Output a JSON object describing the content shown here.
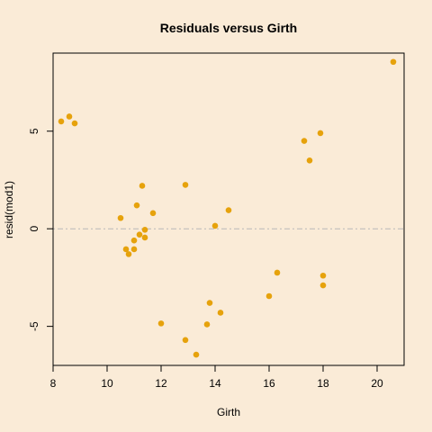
{
  "chart_data": {
    "type": "scatter",
    "title": "Residuals versus Girth",
    "xlabel": "Girth",
    "ylabel": "resid(mod1)",
    "xlim": [
      8,
      21
    ],
    "ylim": [
      -7,
      9
    ],
    "xticks": [
      8,
      10,
      12,
      14,
      16,
      18,
      20
    ],
    "yticks": [
      -5,
      0,
      5
    ],
    "reference_line_y": 0,
    "grid": false,
    "point_color": "#e6a20c",
    "background_color": "#faebd7",
    "points": [
      {
        "x": 8.3,
        "y": 5.5
      },
      {
        "x": 8.6,
        "y": 5.75
      },
      {
        "x": 8.8,
        "y": 5.4
      },
      {
        "x": 10.5,
        "y": 0.55
      },
      {
        "x": 10.7,
        "y": -1.05
      },
      {
        "x": 10.8,
        "y": -1.3
      },
      {
        "x": 11.0,
        "y": -0.6
      },
      {
        "x": 11.0,
        "y": -1.05
      },
      {
        "x": 11.1,
        "y": 1.2
      },
      {
        "x": 11.2,
        "y": -0.3
      },
      {
        "x": 11.3,
        "y": 2.2
      },
      {
        "x": 11.4,
        "y": -0.45
      },
      {
        "x": 11.4,
        "y": -0.05
      },
      {
        "x": 11.7,
        "y": 0.8
      },
      {
        "x": 12.0,
        "y": -4.85
      },
      {
        "x": 12.9,
        "y": -5.7
      },
      {
        "x": 12.9,
        "y": 2.25
      },
      {
        "x": 13.3,
        "y": -6.45
      },
      {
        "x": 13.7,
        "y": -4.9
      },
      {
        "x": 13.8,
        "y": -3.8
      },
      {
        "x": 14.0,
        "y": 0.15
      },
      {
        "x": 14.2,
        "y": -4.3
      },
      {
        "x": 14.5,
        "y": 0.95
      },
      {
        "x": 16.0,
        "y": -3.45
      },
      {
        "x": 16.3,
        "y": -2.25
      },
      {
        "x": 17.3,
        "y": 4.5
      },
      {
        "x": 17.5,
        "y": 3.5
      },
      {
        "x": 17.9,
        "y": 4.9
      },
      {
        "x": 18.0,
        "y": -2.4
      },
      {
        "x": 18.0,
        "y": -2.9
      },
      {
        "x": 20.6,
        "y": 8.55
      }
    ]
  }
}
